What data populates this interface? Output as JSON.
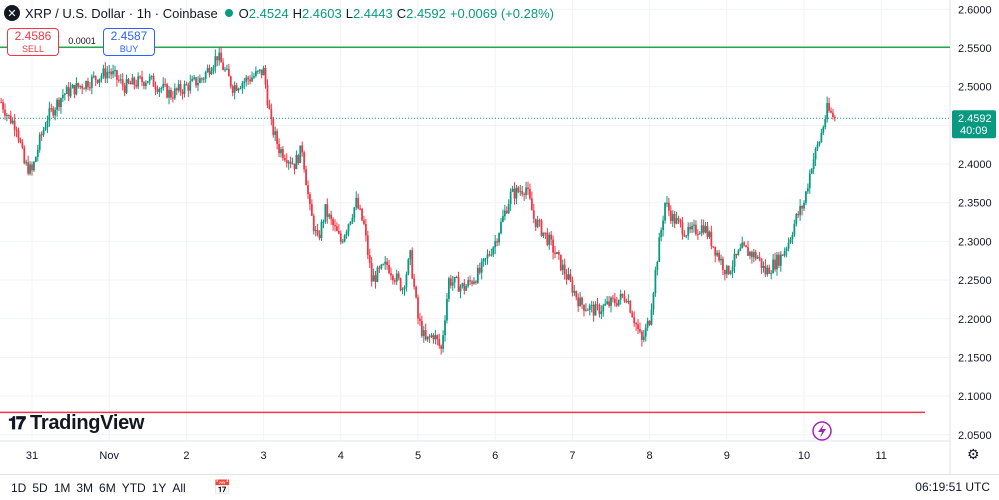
{
  "header": {
    "logo_icon": "xrp-logo-icon",
    "title": "XRP / U.S. Dollar · 1h · Coinbase",
    "open_label": "O",
    "open": "2.4524",
    "high_label": "H",
    "high": "2.4603",
    "low_label": "L",
    "low": "2.4443",
    "close_label": "C",
    "close": "2.4592",
    "change": "+0.0069 (+0.28%)"
  },
  "trade": {
    "sell_price": "2.4586",
    "sell_label": "SELL",
    "buy_price": "2.4587",
    "buy_label": "BUY",
    "spread": "0.0001"
  },
  "price_tag": {
    "price": "2.4592",
    "countdown": "40:09"
  },
  "brand": "TradingView",
  "timeframes": [
    "1D",
    "5D",
    "1M",
    "3M",
    "6M",
    "YTD",
    "1Y",
    "All"
  ],
  "time": "06:19:51 UTC",
  "colors": {
    "up": "#089981",
    "down": "#f23645",
    "resistance": "#22a84a",
    "support": "#f23645"
  },
  "chart_data": {
    "type": "candlestick",
    "y_ticks": [
      "2.6000",
      "2.5500",
      "2.5000",
      "2.4500",
      "2.4000",
      "2.3500",
      "2.3000",
      "2.2500",
      "2.2000",
      "2.1500",
      "2.1000",
      "2.0500"
    ],
    "y_tick_values": [
      2.6,
      2.55,
      2.5,
      2.45,
      2.4,
      2.35,
      2.3,
      2.25,
      2.2,
      2.15,
      2.1,
      2.05
    ],
    "ylim": [
      2.042,
      2.612
    ],
    "x_ticks": [
      "31",
      "Nov",
      "2",
      "3",
      "4",
      "5",
      "6",
      "7",
      "8",
      "9",
      "10",
      "11"
    ],
    "x_tick_index": [
      0,
      10,
      20,
      30,
      40,
      50,
      60,
      70,
      80,
      90,
      100,
      110
    ],
    "horizontal_lines": [
      {
        "name": "resistance",
        "value": 2.551,
        "color": "#22a84a"
      },
      {
        "name": "support",
        "value": 2.079,
        "color": "#f23645"
      }
    ],
    "last_price": 2.4592,
    "anchors": [
      [
        -4,
        2.48
      ],
      [
        -3,
        2.46
      ],
      [
        -2,
        2.45
      ],
      [
        -1,
        2.4
      ],
      [
        0,
        2.39
      ],
      [
        1,
        2.43
      ],
      [
        2,
        2.46
      ],
      [
        4,
        2.49
      ],
      [
        6,
        2.5
      ],
      [
        8,
        2.51
      ],
      [
        10,
        2.52
      ],
      [
        12,
        2.5
      ],
      [
        15,
        2.51
      ],
      [
        18,
        2.49
      ],
      [
        20,
        2.5
      ],
      [
        22,
        2.51
      ],
      [
        24,
        2.54
      ],
      [
        26,
        2.5
      ],
      [
        28,
        2.51
      ],
      [
        30,
        2.52
      ],
      [
        31,
        2.45
      ],
      [
        32,
        2.42
      ],
      [
        34,
        2.4
      ],
      [
        35,
        2.42
      ],
      [
        36,
        2.34
      ],
      [
        37,
        2.3
      ],
      [
        38,
        2.34
      ],
      [
        40,
        2.3
      ],
      [
        42,
        2.35
      ],
      [
        43,
        2.32
      ],
      [
        44,
        2.25
      ],
      [
        46,
        2.27
      ],
      [
        48,
        2.24
      ],
      [
        49,
        2.28
      ],
      [
        50,
        2.2
      ],
      [
        51,
        2.17
      ],
      [
        52,
        2.18
      ],
      [
        53,
        2.16
      ],
      [
        54,
        2.25
      ],
      [
        56,
        2.24
      ],
      [
        58,
        2.26
      ],
      [
        60,
        2.3
      ],
      [
        62,
        2.36
      ],
      [
        64,
        2.37
      ],
      [
        65,
        2.33
      ],
      [
        67,
        2.3
      ],
      [
        69,
        2.26
      ],
      [
        71,
        2.22
      ],
      [
        73,
        2.21
      ],
      [
        75,
        2.22
      ],
      [
        77,
        2.23
      ],
      [
        78,
        2.2
      ],
      [
        79,
        2.17
      ],
      [
        80,
        2.2
      ],
      [
        81,
        2.28
      ],
      [
        82,
        2.35
      ],
      [
        83,
        2.33
      ],
      [
        85,
        2.31
      ],
      [
        87,
        2.32
      ],
      [
        89,
        2.28
      ],
      [
        90,
        2.26
      ],
      [
        92,
        2.29
      ],
      [
        94,
        2.28
      ],
      [
        95,
        2.26
      ],
      [
        97,
        2.28
      ],
      [
        98,
        2.3
      ],
      [
        99,
        2.33
      ],
      [
        100,
        2.35
      ],
      [
        101,
        2.4
      ],
      [
        102,
        2.43
      ],
      [
        103,
        2.47
      ],
      [
        104,
        2.4592
      ]
    ]
  }
}
